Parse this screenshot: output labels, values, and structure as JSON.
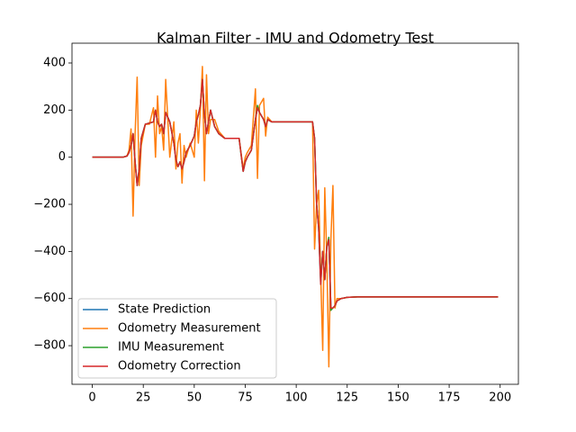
{
  "chart_data": {
    "type": "line",
    "title": "Kalman Filter - IMU and Odometry Test",
    "x": [
      0,
      5,
      10,
      15,
      17,
      18,
      19,
      20,
      21,
      22,
      23,
      24,
      26,
      28,
      30,
      31,
      32,
      33,
      34,
      35,
      36,
      38,
      40,
      41,
      42,
      43,
      44,
      45,
      46,
      48,
      50,
      51,
      52,
      53,
      54,
      55,
      56,
      57,
      58,
      60,
      62,
      65,
      70,
      72,
      74,
      75,
      76,
      78,
      80,
      81,
      82,
      84,
      85,
      86,
      88,
      90,
      95,
      100,
      105,
      108,
      109,
      110,
      111,
      112,
      113,
      114,
      115,
      116,
      117,
      118,
      119,
      120,
      122,
      125,
      130,
      150,
      175,
      199
    ],
    "series": [
      {
        "name": "State Prediction",
        "color": "#1f77b4",
        "values": [
          0,
          0,
          0,
          0,
          5,
          20,
          50,
          100,
          -20,
          -120,
          -50,
          80,
          140,
          145,
          150,
          200,
          150,
          130,
          140,
          100,
          190,
          150,
          60,
          -10,
          -40,
          -20,
          -50,
          -20,
          20,
          50,
          90,
          150,
          180,
          220,
          330,
          180,
          100,
          150,
          200,
          130,
          100,
          80,
          80,
          80,
          -60,
          -20,
          0,
          30,
          160,
          210,
          190,
          160,
          130,
          160,
          150,
          150,
          150,
          150,
          150,
          150,
          80,
          -200,
          -300,
          -540,
          -400,
          -520,
          -380,
          -350,
          -640,
          -640,
          -630,
          -610,
          -600,
          -595,
          -593,
          -593,
          -593,
          -593
        ]
      },
      {
        "name": "Odometry Measurement",
        "color": "#ff7f0e",
        "values": [
          0,
          0,
          0,
          0,
          5,
          30,
          120,
          -250,
          100,
          340,
          -120,
          50,
          140,
          140,
          210,
          0,
          260,
          100,
          130,
          30,
          330,
          0,
          150,
          -50,
          60,
          100,
          -110,
          50,
          0,
          60,
          0,
          200,
          60,
          200,
          385,
          -100,
          350,
          100,
          160,
          160,
          110,
          80,
          80,
          80,
          -50,
          0,
          20,
          50,
          290,
          -90,
          220,
          250,
          90,
          170,
          150,
          150,
          150,
          150,
          150,
          150,
          -390,
          -200,
          -140,
          -500,
          -820,
          -130,
          -430,
          -890,
          -350,
          -120,
          -640,
          -600,
          -600,
          -595,
          -593,
          -593,
          -593,
          -593
        ]
      },
      {
        "name": "IMU Measurement",
        "color": "#2ca02c",
        "values": [
          0,
          0,
          0,
          0,
          5,
          20,
          50,
          100,
          -20,
          -120,
          -50,
          80,
          140,
          145,
          150,
          200,
          150,
          130,
          140,
          100,
          190,
          150,
          60,
          -10,
          -40,
          -20,
          -50,
          -20,
          20,
          50,
          90,
          150,
          180,
          220,
          330,
          180,
          100,
          150,
          200,
          130,
          100,
          80,
          80,
          80,
          -60,
          -20,
          0,
          30,
          160,
          220,
          190,
          160,
          130,
          160,
          150,
          150,
          150,
          150,
          150,
          150,
          80,
          -200,
          -300,
          -520,
          -400,
          -520,
          -380,
          -340,
          -650,
          -640,
          -630,
          -610,
          -600,
          -595,
          -593,
          -593,
          -593,
          -593
        ]
      },
      {
        "name": "Odometry Correction",
        "color": "#d62728",
        "values": [
          0,
          0,
          0,
          0,
          5,
          20,
          50,
          100,
          -20,
          -120,
          -50,
          80,
          140,
          145,
          150,
          200,
          150,
          130,
          140,
          100,
          190,
          150,
          60,
          -10,
          -40,
          -20,
          -50,
          -20,
          20,
          50,
          90,
          150,
          180,
          220,
          330,
          180,
          100,
          150,
          200,
          130,
          100,
          80,
          80,
          80,
          -60,
          -20,
          0,
          30,
          160,
          210,
          190,
          160,
          130,
          160,
          150,
          150,
          150,
          150,
          150,
          150,
          80,
          -200,
          -300,
          -540,
          -400,
          -520,
          -380,
          -350,
          -640,
          -640,
          -630,
          -610,
          -600,
          -595,
          -593,
          -593,
          -593,
          -593
        ]
      }
    ],
    "xlim": [
      -9.95,
      208.95
    ],
    "ylim": [
      -964,
      484
    ],
    "xticks": [
      0,
      25,
      50,
      75,
      100,
      125,
      150,
      175,
      200
    ],
    "yticks": [
      {
        "value": -800,
        "label": "−800"
      },
      {
        "value": -600,
        "label": "−600"
      },
      {
        "value": -400,
        "label": "−400"
      },
      {
        "value": -200,
        "label": "−200"
      },
      0,
      200,
      400
    ],
    "legend": "lower left",
    "grid": false
  }
}
